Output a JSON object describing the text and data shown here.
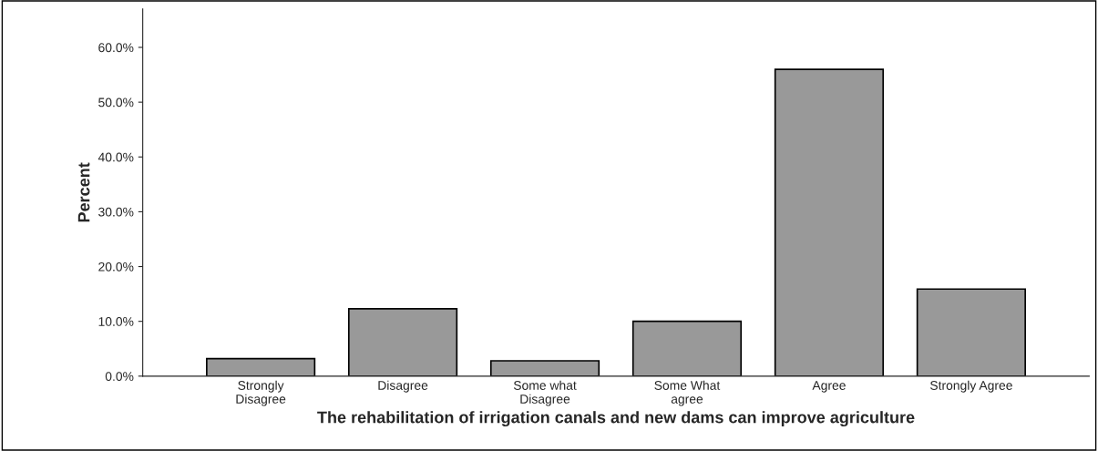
{
  "chart_data": {
    "type": "bar",
    "xlabel": "The rehabilitation of irrigation canals and new dams can improve agriculture",
    "ylabel": "Percent",
    "categories": [
      "Strongly\nDisagree",
      "Disagree",
      "Some what\nDisagree",
      "Some What\nagree",
      "Agree",
      "Strongly Agree"
    ],
    "values": [
      3.2,
      12.3,
      2.8,
      10.0,
      56.0,
      15.9
    ],
    "color": "#999999",
    "ylim": [
      0,
      67
    ],
    "yticks": [
      {
        "value": 0,
        "label": "0.0%"
      },
      {
        "value": 10,
        "label": "10.0%"
      },
      {
        "value": 20,
        "label": "20.0%"
      },
      {
        "value": 30,
        "label": "30.0%"
      },
      {
        "value": 40,
        "label": "40.0%"
      },
      {
        "value": 50,
        "label": "50.0%"
      },
      {
        "value": 60,
        "label": "60.0%"
      }
    ],
    "grid": false,
    "legend": false
  }
}
